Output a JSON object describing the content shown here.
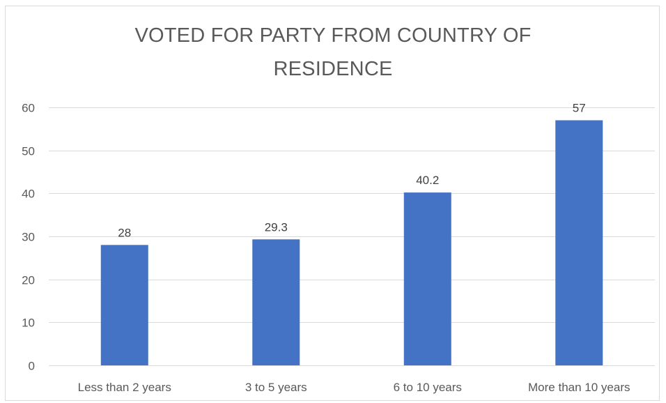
{
  "chart_data": {
    "type": "bar",
    "title_lines": [
      "VOTED FOR PARTY FROM COUNTRY OF",
      "RESIDENCE"
    ],
    "categories": [
      "Less than 2 years",
      "3 to 5 years",
      "6 to 10 years",
      "More than 10 years"
    ],
    "values": [
      28,
      29.3,
      40.2,
      57
    ],
    "data_labels": [
      "28",
      "29.3",
      "40.2",
      "57"
    ],
    "ylim": [
      0,
      60
    ],
    "yticks": [
      0,
      10,
      20,
      30,
      40,
      50,
      60
    ],
    "grid": true,
    "legend": "none",
    "bar_color": "#4472C4",
    "grid_color": "#d9d9d9"
  }
}
